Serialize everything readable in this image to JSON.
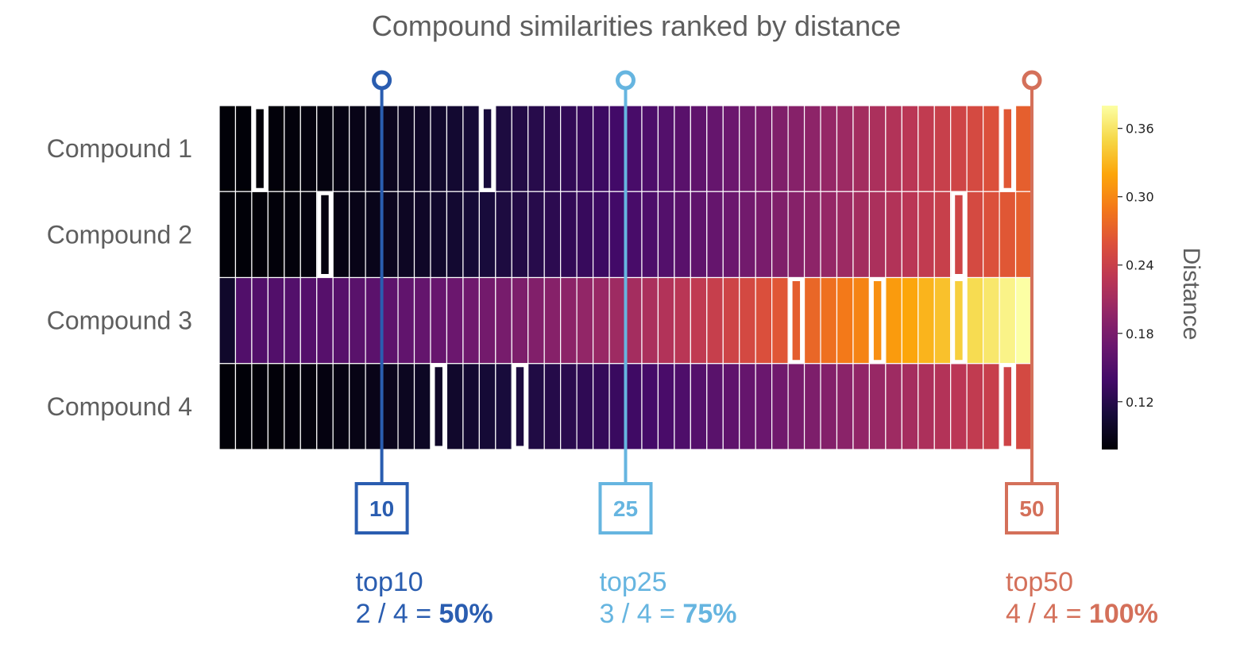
{
  "chart_data": {
    "type": "heatmap",
    "title": "Compound similarities ranked by distance",
    "rows": [
      "Compound 1",
      "Compound 2",
      "Compound 3",
      "Compound 4"
    ],
    "n_columns": 50,
    "colormap": "inferno",
    "colorbar": {
      "label": "Distance",
      "range": [
        0.078,
        0.38
      ],
      "ticks": [
        0.12,
        0.18,
        0.24,
        0.3,
        0.36
      ],
      "tick_labels": [
        "0.12",
        "0.18",
        "0.24",
        "0.30",
        "0.36"
      ]
    },
    "row_distance_ranges": [
      {
        "first": 0.08,
        "last": 0.27,
        "curve": 1.6
      },
      {
        "first": 0.08,
        "last": 0.27,
        "curve": 1.6
      },
      {
        "first": 0.1,
        "last": 0.38,
        "curve": 1.9,
        "second": 0.15
      },
      {
        "first": 0.08,
        "last": 0.25,
        "curve": 1.6
      }
    ],
    "highlighted_ranks": [
      [
        3,
        17,
        49
      ],
      [
        7,
        46
      ],
      [
        36,
        41,
        46
      ],
      [
        14,
        19,
        49
      ]
    ],
    "markers": [
      {
        "rank": 10,
        "label": "10",
        "color": "#2a5db0",
        "summary_title": "top10",
        "summary_fraction": "2 / 4 =",
        "summary_percent": "50%"
      },
      {
        "rank": 25,
        "label": "25",
        "color": "#66b5e0",
        "summary_title": "top25",
        "summary_fraction": "3 / 4 =",
        "summary_percent": "75%"
      },
      {
        "rank": 50,
        "label": "50",
        "color": "#d4705a",
        "summary_title": "top50",
        "summary_fraction": "4 / 4 =",
        "summary_percent": "100%"
      }
    ]
  }
}
